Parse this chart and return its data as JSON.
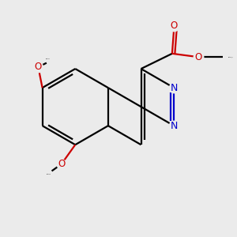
{
  "bg_color": "#ebebeb",
  "bond_color": "#000000",
  "n_color": "#0000cc",
  "o_color": "#cc0000",
  "line_width": 1.6,
  "font_size": 8.5,
  "fig_size": [
    3.0,
    3.0
  ],
  "dpi": 100,
  "xlim": [
    -1.6,
    1.8
  ],
  "ylim": [
    -1.6,
    1.5
  ]
}
